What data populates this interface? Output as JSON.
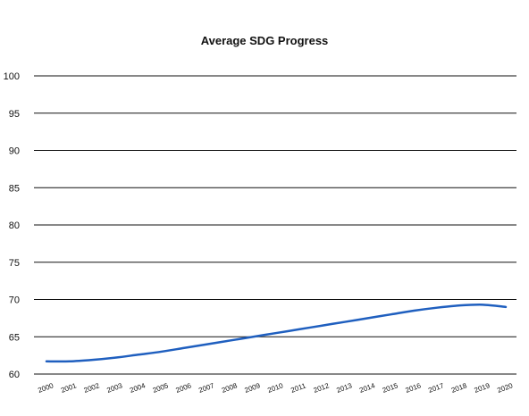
{
  "chart_data": {
    "type": "line",
    "title": "Average SDG Progress",
    "xlabel": "",
    "ylabel": "",
    "x": [
      "2000",
      "2001",
      "2002",
      "2003",
      "2004",
      "2005",
      "2006",
      "2007",
      "2008",
      "2009",
      "2010",
      "2011",
      "2012",
      "2013",
      "2014",
      "2015",
      "2016",
      "2017",
      "2018",
      "2019",
      "2020"
    ],
    "y_ticks": [
      "60",
      "65",
      "70",
      "75",
      "80",
      "85",
      "90",
      "95",
      "100"
    ],
    "ylim": [
      60,
      100
    ],
    "grid": true,
    "series": [
      {
        "values": [
          61.7,
          61.7,
          61.9,
          62.2,
          62.6,
          63.0,
          63.5,
          64.0,
          64.5,
          65.0,
          65.5,
          66.0,
          66.5,
          67.0,
          67.5,
          68.0,
          68.5,
          68.9,
          69.2,
          69.3,
          69.0
        ],
        "color": "#1f5fbf"
      }
    ]
  }
}
